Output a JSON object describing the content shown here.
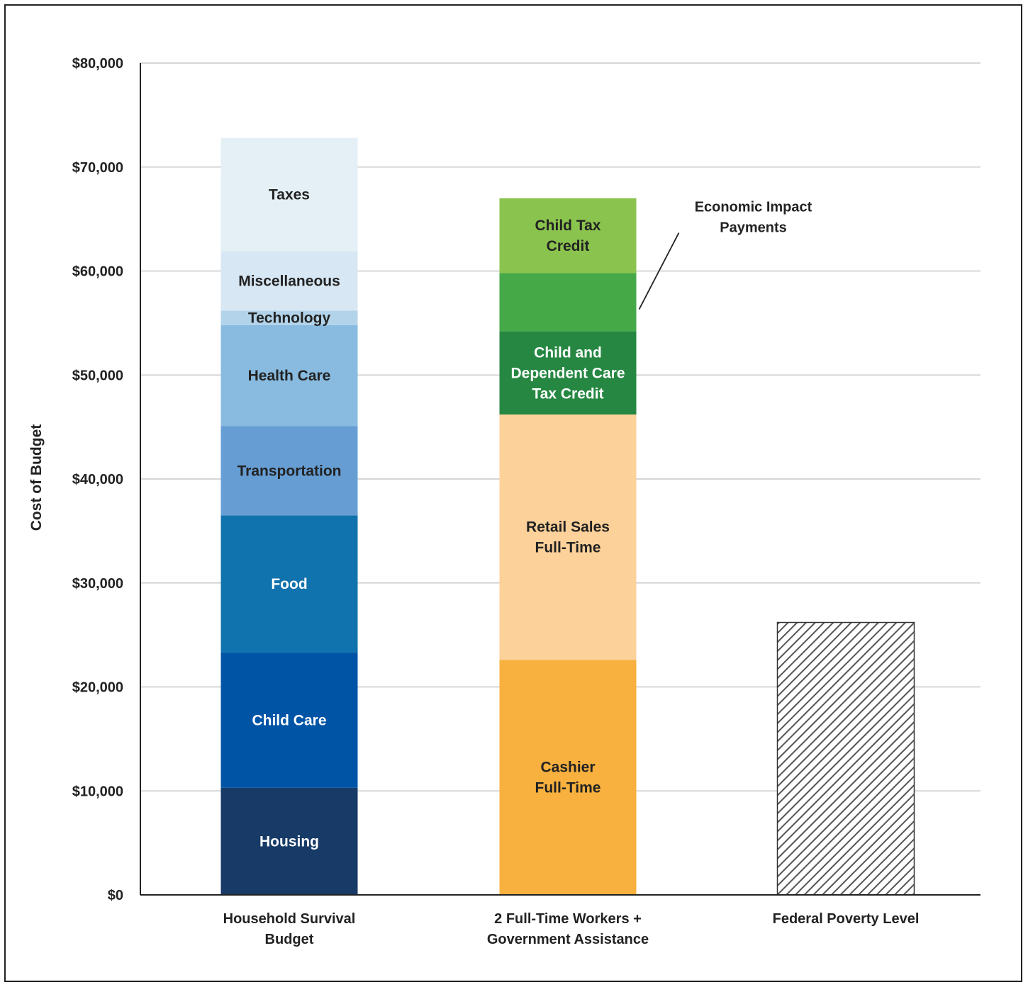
{
  "chart_data": {
    "type": "bar",
    "stacked": true,
    "ylabel": "Cost of Budget",
    "ylim": [
      0,
      80000
    ],
    "yticks": [
      0,
      10000,
      20000,
      30000,
      40000,
      50000,
      60000,
      70000,
      80000
    ],
    "ytick_labels": [
      "$0",
      "$10,000",
      "$20,000",
      "$30,000",
      "$40,000",
      "$50,000",
      "$60,000",
      "$70,000",
      "$80,000"
    ],
    "grid": true,
    "categories": [
      "Household Survival Budget",
      "2 Full-Time Workers + Government Assistance",
      "Federal Poverty Level"
    ],
    "category_lines": [
      [
        "Household Survival",
        "Budget"
      ],
      [
        "2 Full-Time Workers +",
        "Government Assistance"
      ],
      [
        "Federal Poverty Level"
      ]
    ],
    "bars": [
      {
        "category": "Household Survival Budget",
        "segments": [
          {
            "label": "Housing",
            "lines": [
              "Housing"
            ],
            "value": 10300,
            "color": "#173a66",
            "text_color": "#ffffff"
          },
          {
            "label": "Child Care",
            "lines": [
              "Child Care"
            ],
            "value": 13000,
            "color": "#0054a6",
            "text_color": "#ffffff"
          },
          {
            "label": "Food",
            "lines": [
              "Food"
            ],
            "value": 13200,
            "color": "#1173ad",
            "text_color": "#ffffff"
          },
          {
            "label": "Transportation",
            "lines": [
              "Transportation"
            ],
            "value": 8600,
            "color": "#669ed4",
            "text_color": "#222222"
          },
          {
            "label": "Health Care",
            "lines": [
              "Health Care"
            ],
            "value": 9700,
            "color": "#88bbdf",
            "text_color": "#222222"
          },
          {
            "label": "Technology",
            "lines": [
              "Technology"
            ],
            "value": 1400,
            "color": "#b3d3ea",
            "text_color": "#222222"
          },
          {
            "label": "Miscellaneous",
            "lines": [
              "Miscellaneous"
            ],
            "value": 5700,
            "color": "#d7e7f3",
            "text_color": "#222222"
          },
          {
            "label": "Taxes",
            "lines": [
              "Taxes"
            ],
            "value": 10900,
            "color": "#e4f0f5",
            "text_color": "#222222"
          }
        ]
      },
      {
        "category": "2 Full-Time Workers + Government Assistance",
        "segments": [
          {
            "label": "Cashier Full-Time",
            "lines": [
              "Cashier",
              "Full-Time"
            ],
            "value": 22600,
            "color": "#f8b13f",
            "text_color": "#222222"
          },
          {
            "label": "Retail Sales Full-Time",
            "lines": [
              "Retail Sales",
              "Full-Time"
            ],
            "value": 23600,
            "color": "#fdd19a",
            "text_color": "#222222"
          },
          {
            "label": "Child and Dependent Care Tax Credit",
            "lines": [
              "Child and",
              "Dependent Care",
              "Tax Credit"
            ],
            "value": 8000,
            "color": "#268742",
            "text_color": "#ffffff"
          },
          {
            "label": "Economic Impact Payments",
            "lines": [],
            "value": 5600,
            "color": "#46a948",
            "text_color": "#ffffff"
          },
          {
            "label": "Child Tax Credit",
            "lines": [
              "Child Tax",
              "Credit"
            ],
            "value": 7200,
            "color": "#8bc34f",
            "text_color": "#222222"
          }
        ]
      },
      {
        "category": "Federal Poverty Level",
        "segments": [
          {
            "label": "Federal Poverty Level",
            "lines": [],
            "value": 26200,
            "color": "hatch",
            "text_color": "#222222"
          }
        ]
      }
    ],
    "annotation": {
      "lines": [
        "Economic Impact",
        "Payments"
      ],
      "target_bar": 1,
      "target_segment": 3
    }
  }
}
